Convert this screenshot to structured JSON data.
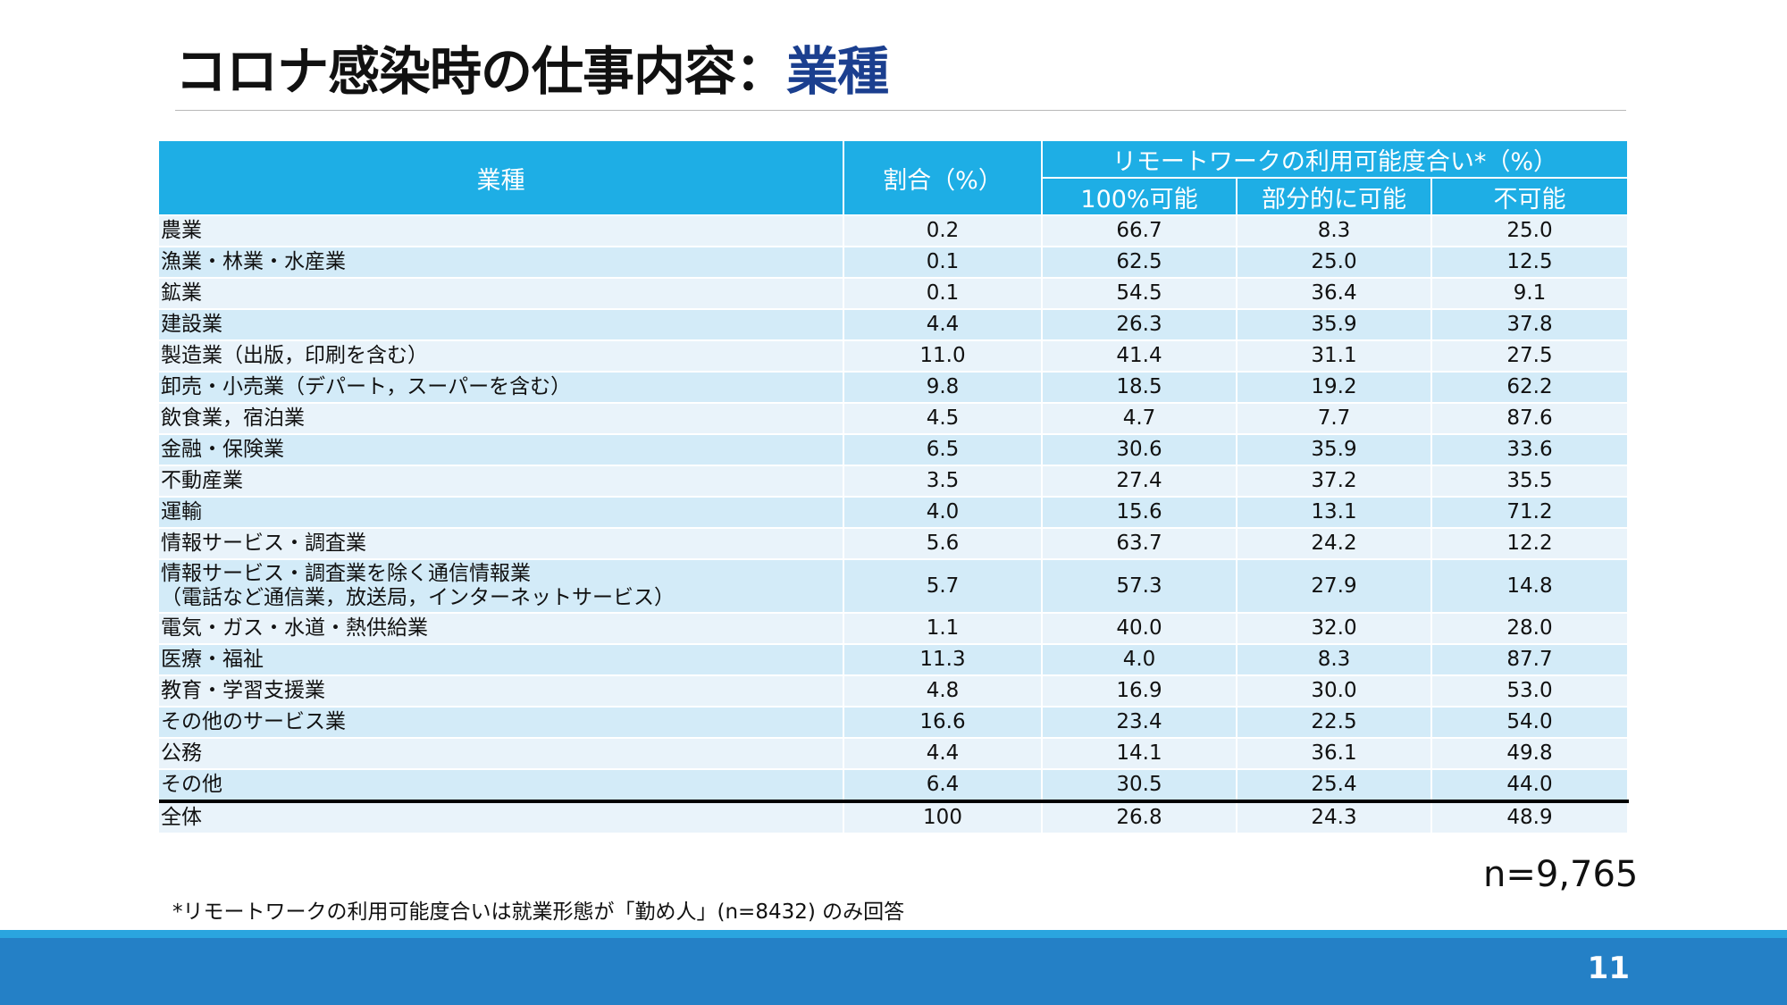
{
  "slide": {
    "title_main": "コロナ感染時の仕事内容：",
    "title_accent": "業種",
    "sample_size": "n=9,765",
    "footnote": "*リモートワークの利用可能度合いは就業形態が「勤め人」(n=8432) のみ回答",
    "page_number": "11",
    "accent_color": "#1b3f8f",
    "header_color": "#1eaee5",
    "footer_color": "#2480c6"
  },
  "table": {
    "headers": {
      "industry": "業種",
      "share": "割合（%）",
      "remote_group": "リモートワークの利用可能度合い*（%）",
      "full": "100%可能",
      "partial": "部分的に可能",
      "none": "不可能"
    },
    "rows": [
      {
        "industry": "農業",
        "share": "0.2",
        "full": "66.7",
        "partial": "8.3",
        "none": "25.0"
      },
      {
        "industry": "漁業・林業・水産業",
        "share": "0.1",
        "full": "62.5",
        "partial": "25.0",
        "none": "12.5"
      },
      {
        "industry": "鉱業",
        "share": "0.1",
        "full": "54.5",
        "partial": "36.4",
        "none": "9.1"
      },
      {
        "industry": "建設業",
        "share": "4.4",
        "full": "26.3",
        "partial": "35.9",
        "none": "37.8"
      },
      {
        "industry": "製造業（出版，印刷を含む）",
        "share": "11.0",
        "full": "41.4",
        "partial": "31.1",
        "none": "27.5"
      },
      {
        "industry": "卸売・小売業（デパート，スーパーを含む）",
        "share": "9.8",
        "full": "18.5",
        "partial": "19.2",
        "none": "62.2"
      },
      {
        "industry": "飲食業，宿泊業",
        "share": "4.5",
        "full": "4.7",
        "partial": "7.7",
        "none": "87.6"
      },
      {
        "industry": "金融・保険業",
        "share": "6.5",
        "full": "30.6",
        "partial": "35.9",
        "none": "33.6"
      },
      {
        "industry": "不動産業",
        "share": "3.5",
        "full": "27.4",
        "partial": "37.2",
        "none": "35.5"
      },
      {
        "industry": "運輸",
        "share": "4.0",
        "full": "15.6",
        "partial": "13.1",
        "none": "71.2"
      },
      {
        "industry": "情報サービス・調査業",
        "share": "5.6",
        "full": "63.7",
        "partial": "24.2",
        "none": "12.2"
      },
      {
        "industry": "情報サービス・調査業を除く通信情報業",
        "industry_line2": "（電話など通信業，放送局，インターネットサービス）",
        "share": "5.7",
        "full": "57.3",
        "partial": "27.9",
        "none": "14.8"
      },
      {
        "industry": "電気・ガス・水道・熱供給業",
        "share": "1.1",
        "full": "40.0",
        "partial": "32.0",
        "none": "28.0"
      },
      {
        "industry": "医療・福祉",
        "share": "11.3",
        "full": "4.0",
        "partial": "8.3",
        "none": "87.7"
      },
      {
        "industry": "教育・学習支援業",
        "share": "4.8",
        "full": "16.9",
        "partial": "30.0",
        "none": "53.0"
      },
      {
        "industry": "その他のサービス業",
        "share": "16.6",
        "full": "23.4",
        "partial": "22.5",
        "none": "54.0"
      },
      {
        "industry": "公務",
        "share": "4.4",
        "full": "14.1",
        "partial": "36.1",
        "none": "49.8"
      },
      {
        "industry": "その他",
        "share": "6.4",
        "full": "30.5",
        "partial": "25.4",
        "none": "44.0"
      }
    ],
    "total": {
      "industry": "全体",
      "share": "100",
      "full": "26.8",
      "partial": "24.3",
      "none": "48.9"
    }
  }
}
